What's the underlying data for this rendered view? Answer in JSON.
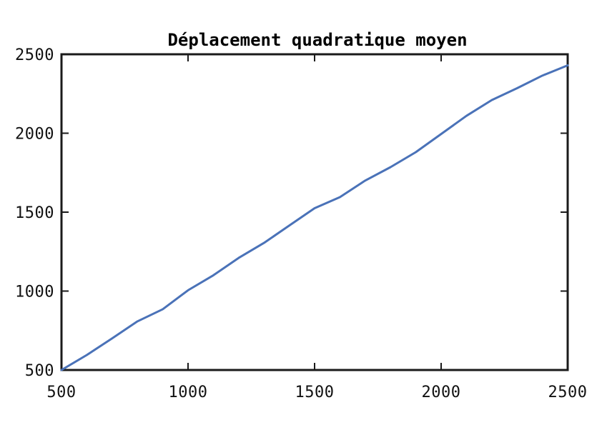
{
  "chart_data": {
    "type": "line",
    "title": "Déplacement quadratique moyen",
    "xlabel": "",
    "ylabel": "",
    "xlim": [
      500,
      2500
    ],
    "ylim": [
      500,
      2500
    ],
    "x_ticks": [
      "500",
      "1000",
      "1500",
      "2000",
      "2500"
    ],
    "y_ticks": [
      "500",
      "1000",
      "1500",
      "2000",
      "2500"
    ],
    "grid": false,
    "legend": "none",
    "series": [
      {
        "color": "#4a72b8",
        "x": [
          500,
          600,
          700,
          800,
          900,
          1000,
          1100,
          1200,
          1300,
          1400,
          1500,
          1600,
          1700,
          1800,
          1900,
          2000,
          2100,
          2200,
          2300,
          2400,
          2500
        ],
        "y": [
          500,
          595,
          700,
          808,
          885,
          1005,
          1100,
          1210,
          1305,
          1415,
          1525,
          1595,
          1700,
          1785,
          1880,
          1995,
          2110,
          2210,
          2285,
          2365,
          2430
        ]
      }
    ]
  }
}
